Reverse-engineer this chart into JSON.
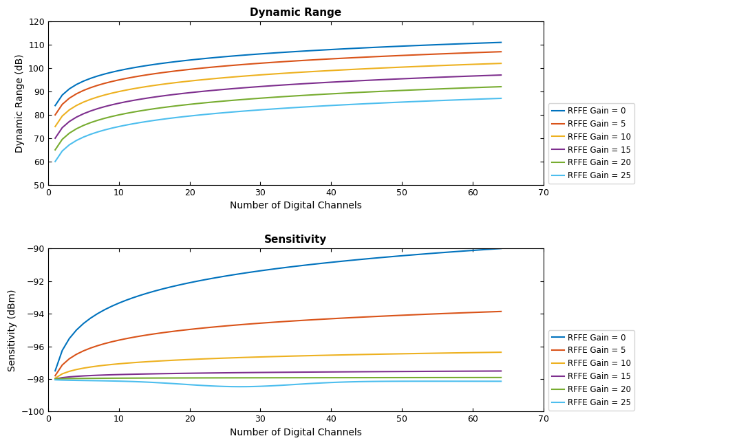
{
  "title1": "Dynamic Range",
  "title2": "Sensitivity",
  "xlabel": "Number of Digital Channels",
  "ylabel1": "Dynamic Range (dB)",
  "ylabel2": "Sensitivity (dBm)",
  "ylim1": [
    50,
    120
  ],
  "ylim2": [
    -100,
    -90
  ],
  "yticks1": [
    50,
    60,
    70,
    80,
    90,
    100,
    110,
    120
  ],
  "xlim": [
    0,
    70
  ],
  "xticks": [
    0,
    10,
    20,
    30,
    40,
    50,
    60,
    70
  ],
  "legend_labels": [
    "RFFE Gain = 0",
    "RFFE Gain = 5",
    "RFFE Gain = 10",
    "RFFE Gain = 15",
    "RFFE Gain = 20",
    "RFFE Gain = 25"
  ],
  "colors": [
    "#0072BD",
    "#D95319",
    "#EDB120",
    "#7E2F8E",
    "#77AC30",
    "#4DBEEE"
  ],
  "dr_base": [
    84.0,
    80.0,
    75.0,
    70.0,
    65.0,
    60.0
  ],
  "dr_log_factor": [
    15.0,
    15.0,
    15.0,
    15.0,
    15.0,
    15.0
  ],
  "sens_base": [
    -97.5,
    -97.8,
    -97.95,
    -98.0,
    -98.0,
    -98.05
  ],
  "sens_factors": [
    0.415,
    0.218,
    0.088,
    0.027,
    0.005,
    -0.005
  ],
  "background_color": "#ffffff"
}
